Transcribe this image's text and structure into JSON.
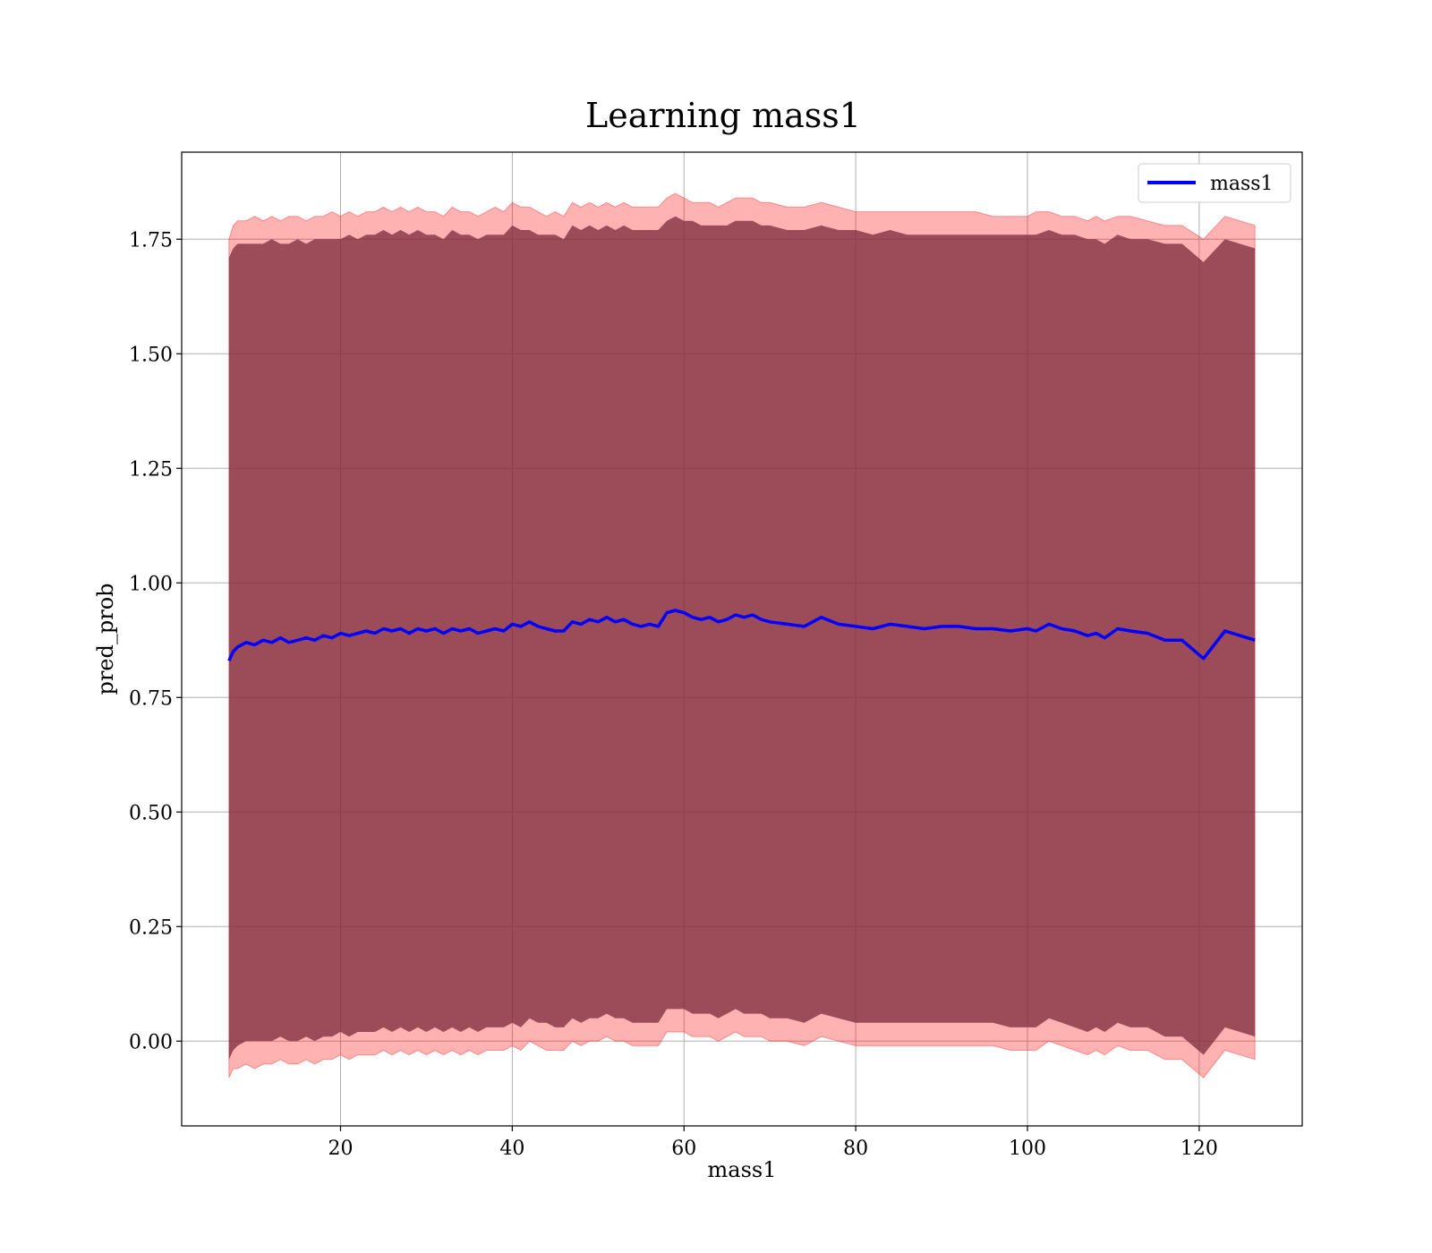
{
  "chart_data": {
    "type": "line",
    "title": "Learning mass1",
    "xlabel": "mass1",
    "ylabel": "pred_prob",
    "xlim": [
      1.5,
      132
    ],
    "ylim": [
      -0.185,
      1.94
    ],
    "xticks": [
      20,
      40,
      60,
      80,
      100,
      120
    ],
    "yticks": [
      0.0,
      0.25,
      0.5,
      0.75,
      1.0,
      1.25,
      1.5,
      1.75
    ],
    "ytick_labels": [
      "0.00",
      "0.25",
      "0.50",
      "0.75",
      "1.00",
      "1.25",
      "1.50",
      "1.75"
    ],
    "xtick_labels": [
      "20",
      "40",
      "60",
      "80",
      "100",
      "120"
    ],
    "grid": true,
    "legend_position": "top-right",
    "colors": {
      "line": "#0000ff",
      "outer_band": "#ff0000",
      "inner_band": "#7b2a3b"
    },
    "series": [
      {
        "name": "mass1",
        "x": [
          7,
          7.5,
          8,
          9,
          10,
          11,
          12,
          13,
          14,
          15,
          16,
          17,
          18,
          19,
          20,
          21,
          22,
          23,
          24,
          25,
          26,
          27,
          28,
          29,
          30,
          31,
          32,
          33,
          34,
          35,
          36,
          37,
          38,
          39,
          40,
          41,
          42,
          43,
          44,
          45,
          46,
          47,
          48,
          49,
          50,
          51,
          52,
          53,
          54,
          55,
          56,
          57,
          58,
          59,
          60,
          61,
          62,
          63,
          64,
          65,
          66,
          67,
          68,
          69,
          70,
          72,
          74,
          76,
          78,
          80,
          82,
          84,
          86,
          88,
          90,
          92,
          94,
          96,
          98,
          100,
          101,
          102.5,
          104,
          105.5,
          107,
          108,
          109,
          110.5,
          112,
          114,
          116,
          118,
          120.5,
          123,
          126.5
        ],
        "values": [
          0.83,
          0.85,
          0.86,
          0.87,
          0.865,
          0.875,
          0.87,
          0.88,
          0.87,
          0.875,
          0.88,
          0.875,
          0.885,
          0.88,
          0.89,
          0.885,
          0.89,
          0.895,
          0.89,
          0.9,
          0.895,
          0.9,
          0.89,
          0.9,
          0.895,
          0.9,
          0.89,
          0.9,
          0.895,
          0.9,
          0.89,
          0.895,
          0.9,
          0.895,
          0.91,
          0.905,
          0.915,
          0.905,
          0.9,
          0.895,
          0.895,
          0.915,
          0.91,
          0.92,
          0.915,
          0.925,
          0.915,
          0.92,
          0.91,
          0.905,
          0.91,
          0.905,
          0.935,
          0.94,
          0.935,
          0.925,
          0.92,
          0.925,
          0.915,
          0.92,
          0.93,
          0.925,
          0.93,
          0.92,
          0.915,
          0.91,
          0.905,
          0.925,
          0.91,
          0.905,
          0.9,
          0.91,
          0.905,
          0.9,
          0.905,
          0.905,
          0.9,
          0.9,
          0.895,
          0.9,
          0.895,
          0.91,
          0.9,
          0.895,
          0.885,
          0.89,
          0.88,
          0.9,
          0.895,
          0.89,
          0.875,
          0.875,
          0.835,
          0.895,
          0.875
        ],
        "band_outer_upper": [
          1.75,
          1.78,
          1.79,
          1.79,
          1.8,
          1.79,
          1.8,
          1.79,
          1.8,
          1.8,
          1.79,
          1.8,
          1.8,
          1.81,
          1.8,
          1.81,
          1.8,
          1.81,
          1.81,
          1.82,
          1.81,
          1.82,
          1.81,
          1.82,
          1.81,
          1.81,
          1.8,
          1.82,
          1.81,
          1.81,
          1.8,
          1.81,
          1.82,
          1.81,
          1.83,
          1.82,
          1.82,
          1.81,
          1.8,
          1.81,
          1.8,
          1.83,
          1.82,
          1.83,
          1.82,
          1.83,
          1.82,
          1.83,
          1.82,
          1.82,
          1.82,
          1.82,
          1.84,
          1.85,
          1.84,
          1.83,
          1.83,
          1.83,
          1.82,
          1.83,
          1.84,
          1.84,
          1.84,
          1.83,
          1.83,
          1.82,
          1.82,
          1.83,
          1.82,
          1.81,
          1.81,
          1.81,
          1.81,
          1.81,
          1.81,
          1.81,
          1.81,
          1.8,
          1.8,
          1.8,
          1.81,
          1.81,
          1.8,
          1.8,
          1.79,
          1.8,
          1.79,
          1.8,
          1.8,
          1.79,
          1.78,
          1.78,
          1.75,
          1.8,
          1.78
        ],
        "band_inner_upper": [
          1.71,
          1.73,
          1.74,
          1.74,
          1.74,
          1.74,
          1.75,
          1.74,
          1.74,
          1.75,
          1.74,
          1.75,
          1.75,
          1.75,
          1.75,
          1.76,
          1.75,
          1.76,
          1.76,
          1.77,
          1.76,
          1.77,
          1.76,
          1.77,
          1.76,
          1.76,
          1.75,
          1.77,
          1.76,
          1.76,
          1.75,
          1.76,
          1.76,
          1.76,
          1.78,
          1.77,
          1.77,
          1.76,
          1.76,
          1.76,
          1.75,
          1.78,
          1.77,
          1.78,
          1.77,
          1.78,
          1.77,
          1.78,
          1.77,
          1.77,
          1.77,
          1.77,
          1.79,
          1.8,
          1.79,
          1.79,
          1.78,
          1.78,
          1.78,
          1.78,
          1.79,
          1.79,
          1.79,
          1.78,
          1.78,
          1.77,
          1.77,
          1.78,
          1.77,
          1.77,
          1.76,
          1.77,
          1.76,
          1.76,
          1.76,
          1.76,
          1.76,
          1.76,
          1.76,
          1.76,
          1.76,
          1.77,
          1.76,
          1.76,
          1.75,
          1.75,
          1.74,
          1.76,
          1.75,
          1.75,
          1.74,
          1.74,
          1.7,
          1.75,
          1.73
        ],
        "band_inner_lower": [
          -0.04,
          -0.02,
          -0.01,
          0.0,
          0.0,
          0.0,
          0.0,
          0.01,
          0.0,
          0.0,
          0.01,
          0.0,
          0.01,
          0.01,
          0.02,
          0.01,
          0.02,
          0.02,
          0.02,
          0.03,
          0.02,
          0.03,
          0.02,
          0.03,
          0.02,
          0.03,
          0.02,
          0.03,
          0.02,
          0.03,
          0.02,
          0.03,
          0.03,
          0.03,
          0.04,
          0.03,
          0.05,
          0.04,
          0.04,
          0.03,
          0.03,
          0.05,
          0.04,
          0.05,
          0.05,
          0.06,
          0.05,
          0.05,
          0.04,
          0.04,
          0.04,
          0.04,
          0.07,
          0.07,
          0.07,
          0.06,
          0.06,
          0.06,
          0.05,
          0.06,
          0.07,
          0.06,
          0.06,
          0.06,
          0.05,
          0.05,
          0.04,
          0.06,
          0.05,
          0.04,
          0.04,
          0.04,
          0.04,
          0.04,
          0.04,
          0.04,
          0.04,
          0.04,
          0.03,
          0.03,
          0.03,
          0.05,
          0.04,
          0.03,
          0.02,
          0.03,
          0.02,
          0.04,
          0.03,
          0.03,
          0.01,
          0.01,
          -0.03,
          0.03,
          0.01
        ],
        "band_outer_lower": [
          -0.08,
          -0.06,
          -0.06,
          -0.05,
          -0.06,
          -0.05,
          -0.05,
          -0.04,
          -0.05,
          -0.05,
          -0.04,
          -0.05,
          -0.04,
          -0.04,
          -0.03,
          -0.04,
          -0.03,
          -0.03,
          -0.03,
          -0.02,
          -0.03,
          -0.02,
          -0.03,
          -0.02,
          -0.03,
          -0.02,
          -0.03,
          -0.02,
          -0.03,
          -0.02,
          -0.03,
          -0.02,
          -0.02,
          -0.02,
          -0.01,
          -0.02,
          0.0,
          -0.01,
          -0.02,
          -0.02,
          -0.02,
          0.0,
          -0.01,
          0.0,
          0.0,
          0.01,
          0.0,
          0.0,
          -0.01,
          -0.01,
          -0.01,
          -0.01,
          0.02,
          0.02,
          0.02,
          0.01,
          0.01,
          0.01,
          0.0,
          0.01,
          0.02,
          0.01,
          0.01,
          0.01,
          0.0,
          0.0,
          -0.01,
          0.01,
          0.0,
          -0.01,
          -0.01,
          -0.01,
          -0.01,
          -0.01,
          -0.01,
          -0.01,
          -0.01,
          -0.01,
          -0.02,
          -0.02,
          -0.02,
          0.0,
          -0.01,
          -0.02,
          -0.03,
          -0.02,
          -0.03,
          -0.01,
          -0.02,
          -0.02,
          -0.04,
          -0.04,
          -0.08,
          -0.02,
          -0.04
        ]
      }
    ]
  }
}
